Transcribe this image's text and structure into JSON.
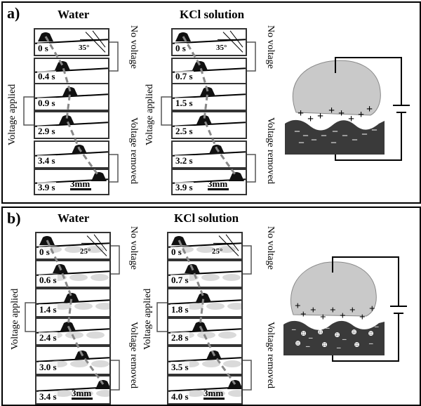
{
  "panels": [
    {
      "id": "a",
      "label": "a)",
      "columns": [
        {
          "title": "Water",
          "times": [
            "0 s",
            "0.4 s",
            "0.9 s",
            "2.9 s",
            "3.4 s",
            "3.9 s"
          ],
          "angle": "35°",
          "scale": "3mm"
        },
        {
          "title": "KCl solution",
          "times": [
            "0 s",
            "0.7 s",
            "1.5 s",
            "2.5 s",
            "3.2 s",
            "3.9 s"
          ],
          "angle": "35°",
          "scale": "3mm"
        }
      ]
    },
    {
      "id": "b",
      "label": "b)",
      "columns": [
        {
          "title": "Water",
          "times": [
            "0 s",
            "0.6 s",
            "1.4 s",
            "2.4 s",
            "3.0 s",
            "3.4 s"
          ],
          "angle": "25°",
          "scale": "3mm"
        },
        {
          "title": "KCl solution",
          "times": [
            "0 s",
            "0.7 s",
            "1.8 s",
            "2.8 s",
            "3.5 s",
            "4.0 s"
          ],
          "angle": "25°",
          "scale": "3mm"
        }
      ]
    }
  ],
  "annotations": {
    "no_voltage": "No voltage",
    "voltage_applied": "Voltage applied",
    "voltage_removed": "Voltage removed"
  },
  "colors": {
    "droplet": "#c9c9c9",
    "substrate": "#3a3a3a",
    "trajectory": "#888888"
  }
}
